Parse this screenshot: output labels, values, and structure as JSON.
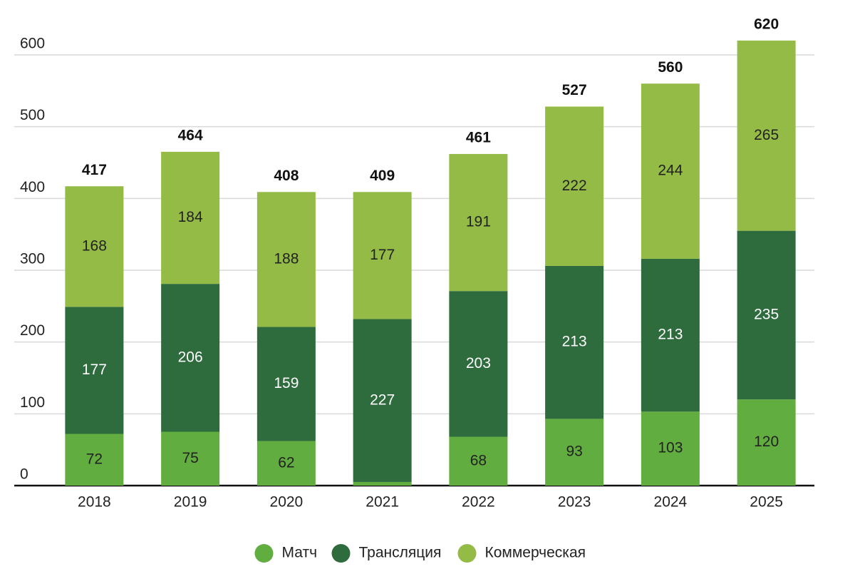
{
  "chart_data": {
    "type": "bar",
    "stacked": true,
    "categories": [
      "2018",
      "2019",
      "2020",
      "2021",
      "2022",
      "2023",
      "2024",
      "2025"
    ],
    "series": [
      {
        "name": "Матч",
        "color": "#62ad3f",
        "values": [
          72,
          75,
          62,
          5,
          68,
          93,
          103,
          120
        ]
      },
      {
        "name": "Трансляция",
        "color": "#2e6b3d",
        "values": [
          177,
          206,
          159,
          227,
          203,
          213,
          213,
          235
        ]
      },
      {
        "name": "Коммерческая",
        "color": "#94bb45",
        "values": [
          168,
          184,
          188,
          177,
          191,
          222,
          244,
          265
        ]
      }
    ],
    "totals": [
      417,
      464,
      408,
      409,
      461,
      527,
      560,
      620
    ],
    "ylim": [
      0,
      600
    ],
    "yticks": [
      0,
      100,
      200,
      300,
      400,
      500,
      600
    ],
    "grid": true
  }
}
